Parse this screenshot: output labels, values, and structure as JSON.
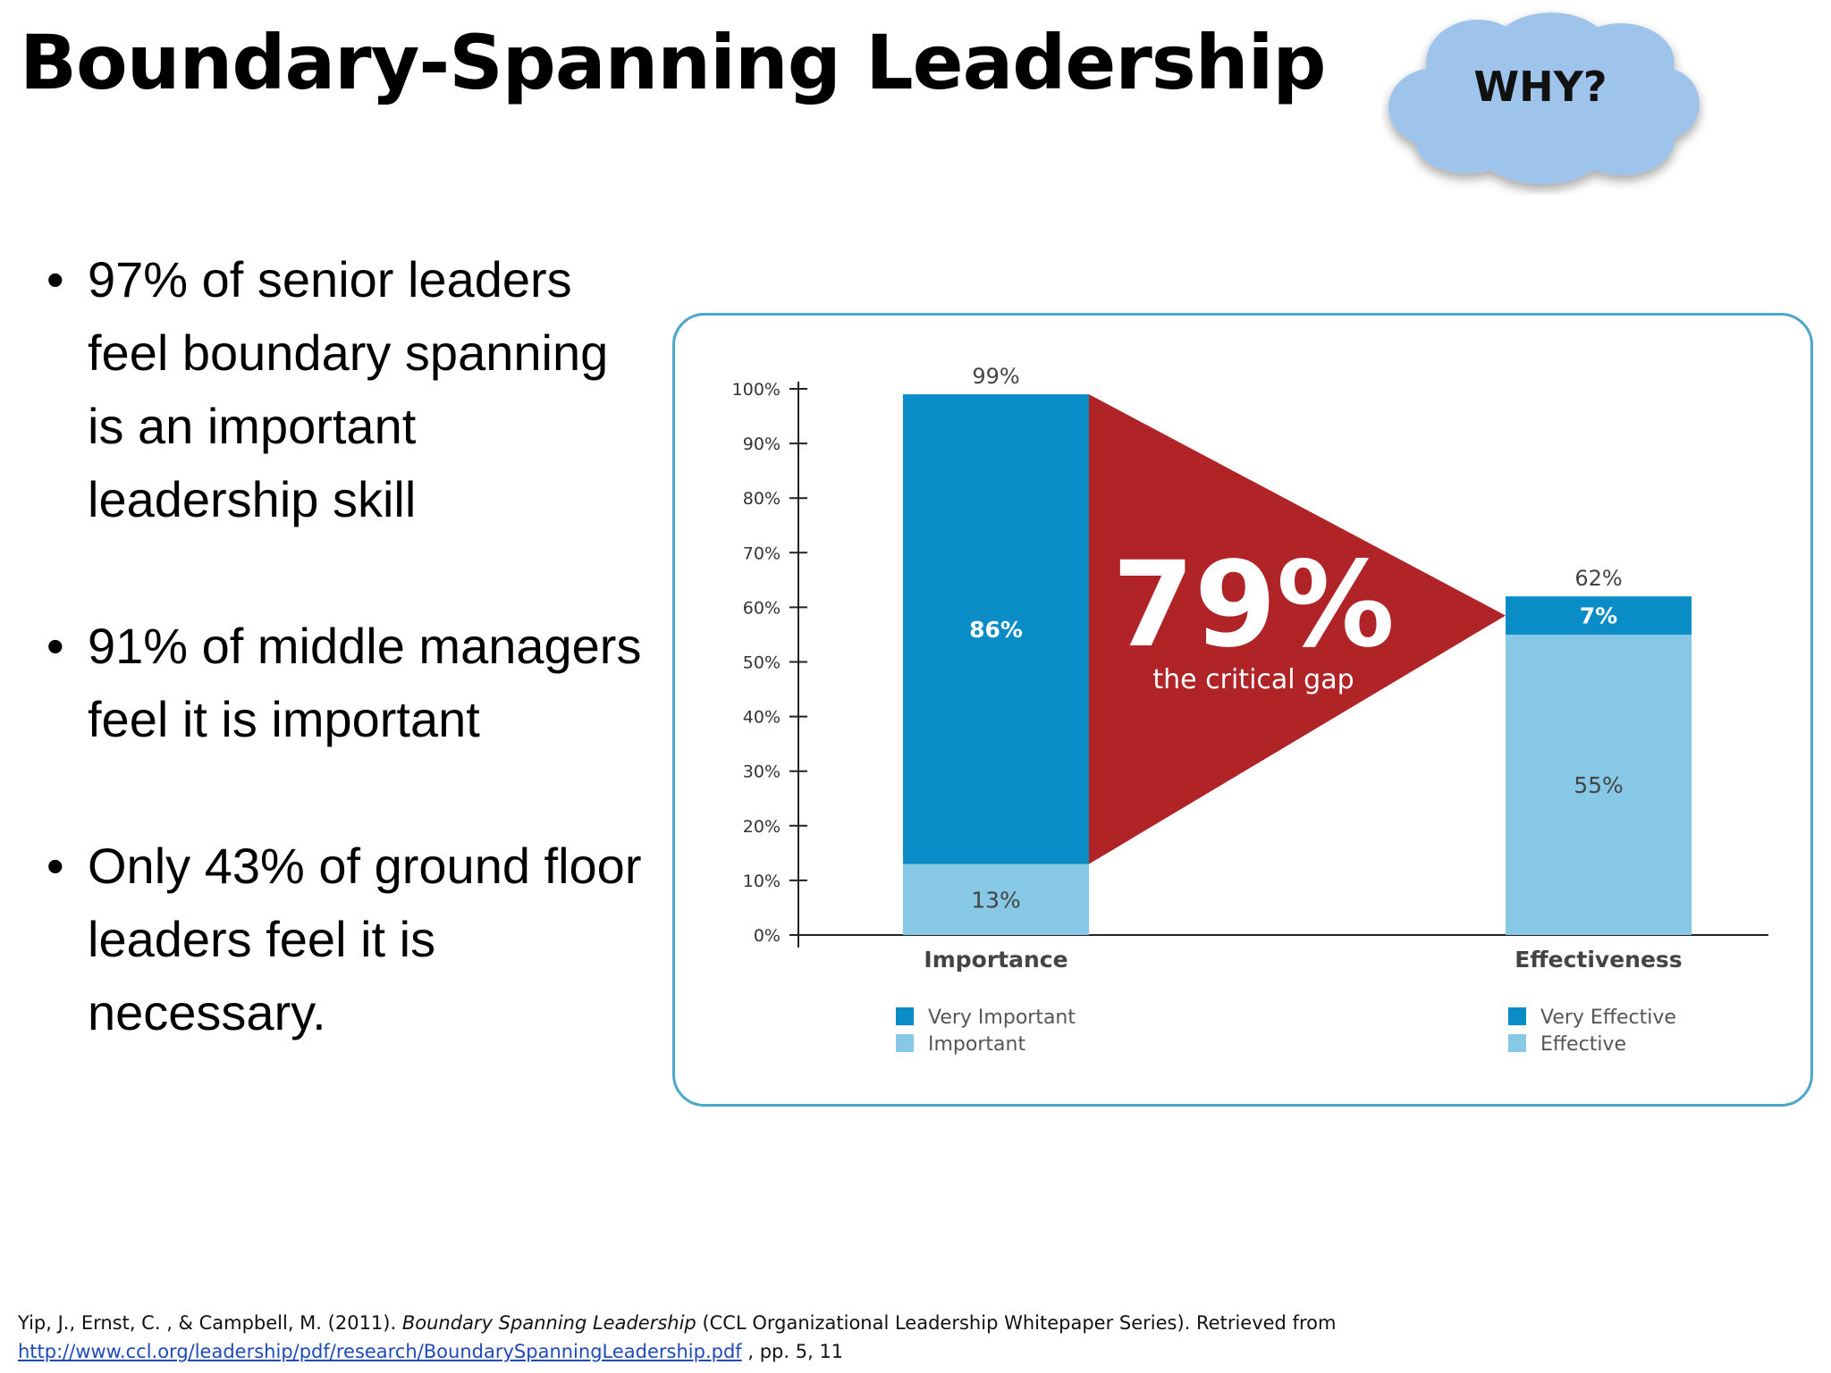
{
  "title": "Boundary-Spanning Leadership",
  "cloud": {
    "label": "WHY?",
    "fill": "#9ec4ec",
    "stroke": "#6f98c8"
  },
  "bullets": [
    {
      "marker": "•",
      "text": "97% of senior leaders feel boundary spanning is an important leadership skill"
    },
    {
      "marker": "•",
      "text": "91% of middle managers feel it is important"
    },
    {
      "marker": "•",
      "text": "Only 43% of ground floor leaders feel it is necessary."
    }
  ],
  "chart_data": {
    "type": "bar",
    "stacked": true,
    "categories": [
      "Importance",
      "Effectiveness"
    ],
    "yticks": [
      "0%",
      "10%",
      "20%",
      "30%",
      "40%",
      "50%",
      "60%",
      "70%",
      "80%",
      "90%",
      "100%"
    ],
    "ylim": [
      0,
      100
    ],
    "series": [
      {
        "values": [
          13,
          55
        ],
        "labels": [
          "13%",
          "55%"
        ],
        "color": "#86c8e5"
      },
      {
        "values": [
          86,
          7
        ],
        "labels": [
          "86%",
          "7%"
        ],
        "color": "#0a8dc6"
      }
    ],
    "totals": [
      "99%",
      "62%"
    ],
    "gap": {
      "value": "79%",
      "label": "the critical gap",
      "color": "#b02428"
    },
    "legends": [
      {
        "items": [
          {
            "name": "Very Important",
            "color": "#0a8dc6"
          },
          {
            "name": "Important",
            "color": "#86c8e5"
          }
        ]
      },
      {
        "items": [
          {
            "name": "Very Effective",
            "color": "#0a8dc6"
          },
          {
            "name": "Effective",
            "color": "#86c8e5"
          }
        ]
      }
    ]
  },
  "citation": {
    "line1_prefix": "Yip, J., Ernst, C. , & Campbell, M. (2011).",
    "line1_title": "Boundary Spanning Leadership",
    "line1_suffix": "(CCL Organizational  Leadership Whitepaper Series). Retrieved from",
    "url": "http://www.ccl.org/leadership/pdf/research/BoundarySpanningLeadership.pdf",
    "pages": ", pp. 5, 11"
  }
}
